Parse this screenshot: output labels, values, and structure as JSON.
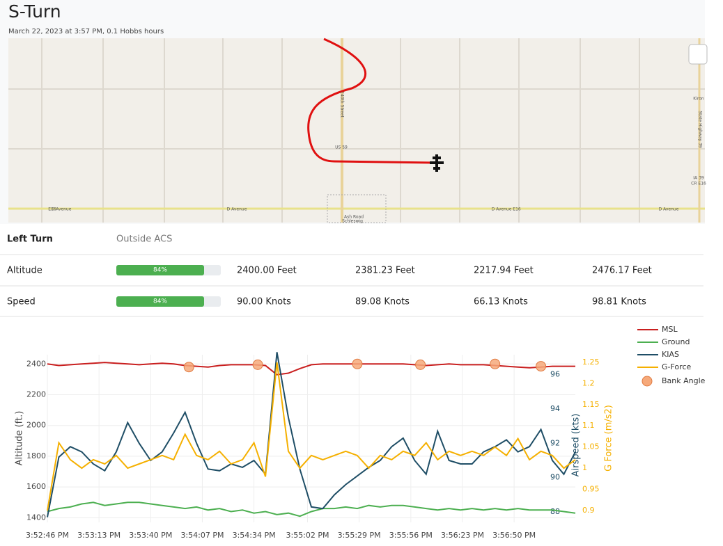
{
  "header": {
    "title": "S-Turn",
    "subtitle": "March 22, 2023 at 3:57 PM, 0.1 Hobbs hours"
  },
  "map": {
    "labels": [
      "E16",
      "D Avenue",
      "D Avenue",
      "D Avenue",
      "E16",
      "D Avenue",
      "US 59",
      "Ash Road",
      "Schleswig",
      "Kiron",
      "IA 39",
      "CR E16",
      "240th Street",
      "State Highway 39"
    ]
  },
  "table": {
    "header": [
      "Left Turn",
      "Outside ACS"
    ],
    "rows": [
      {
        "label": "Altitude",
        "progress": {
          "value": 84,
          "label": "84%"
        },
        "cells": [
          "2400.00 Feet",
          "2381.23 Feet",
          "2217.94 Feet",
          "2476.17 Feet"
        ]
      },
      {
        "label": "Speed",
        "progress": {
          "value": 84,
          "label": "84%"
        },
        "cells": [
          "90.00 Knots",
          "89.08 Knots",
          "66.13 Knots",
          "98.81 Knots"
        ]
      }
    ]
  },
  "chart_data": {
    "type": "line",
    "x": [
      "3:52:46 PM",
      "3:52:52 PM",
      "3:52:58 PM",
      "3:53:04 PM",
      "3:53:10 PM",
      "3:53:16 PM",
      "3:53:22 PM",
      "3:53:28 PM",
      "3:53:34 PM",
      "3:53:40 PM",
      "3:53:46 PM",
      "3:53:52 PM",
      "3:53:58 PM",
      "3:54:04 PM",
      "3:54:10 PM",
      "3:54:16 PM",
      "3:54:22 PM",
      "3:54:28 PM",
      "3:54:34 PM",
      "3:54:40 PM",
      "3:54:46 PM",
      "3:54:52 PM",
      "3:54:58 PM",
      "3:55:04 PM",
      "3:55:10 PM",
      "3:55:16 PM",
      "3:55:22 PM",
      "3:55:28 PM",
      "3:55:34 PM",
      "3:55:40 PM",
      "3:55:46 PM",
      "3:55:52 PM",
      "3:55:58 PM",
      "3:56:04 PM",
      "3:56:10 PM",
      "3:56:16 PM",
      "3:56:22 PM",
      "3:56:28 PM",
      "3:56:34 PM",
      "3:56:40 PM",
      "3:56:46 PM",
      "3:56:52 PM",
      "3:56:58 PM",
      "3:57:04 PM",
      "3:57:10 PM",
      "3:57:16 PM",
      "3:57:22 PM"
    ],
    "xlim": [
      "3:52:46 PM",
      "3:57:22 PM"
    ],
    "xticks": [
      "3:52:46 PM",
      "3:53:13 PM",
      "3:53:40 PM",
      "3:54:07 PM",
      "3:54:34 PM",
      "3:55:02 PM",
      "3:55:29 PM",
      "3:55:56 PM",
      "3:56:23 PM",
      "3:56:50 PM"
    ],
    "ylabel": "Altitude (ft.)",
    "ylim": [
      1370,
      2460
    ],
    "yticks": [
      1400,
      1600,
      1800,
      2000,
      2200,
      2400
    ],
    "y2label": "Airspeed (kts)",
    "y2lim": [
      87.4,
      97.15
    ],
    "y2ticks": [
      88,
      90,
      92,
      94,
      96
    ],
    "y3label": "G Force (m/s2)",
    "y3lim": [
      0.872,
      1.268
    ],
    "y3ticks": [
      0.9,
      0.95,
      1,
      1.05,
      1.1,
      1.15,
      1.2,
      1.25
    ],
    "grid": true,
    "series": [
      {
        "name": "MSL",
        "color": "#c91f1f",
        "values": [
          2400,
          2390,
          2395,
          2400,
          2405,
          2410,
          2405,
          2400,
          2395,
          2400,
          2405,
          2400,
          2390,
          2385,
          2380,
          2390,
          2395,
          2395,
          2395,
          2390,
          2330,
          2340,
          2370,
          2395,
          2400,
          2400,
          2400,
          2400,
          2400,
          2400,
          2400,
          2400,
          2395,
          2390,
          2395,
          2400,
          2395,
          2395,
          2395,
          2390,
          2385,
          2380,
          2375,
          2380,
          2385,
          2385,
          2385
        ]
      },
      {
        "name": "Ground",
        "color": "#4caf50",
        "values": [
          1440,
          1460,
          1470,
          1490,
          1500,
          1480,
          1490,
          1500,
          1500,
          1490,
          1480,
          1470,
          1460,
          1470,
          1450,
          1460,
          1440,
          1450,
          1430,
          1440,
          1420,
          1430,
          1410,
          1440,
          1460,
          1460,
          1470,
          1460,
          1480,
          1470,
          1480,
          1480,
          1470,
          1460,
          1450,
          1460,
          1450,
          1460,
          1450,
          1460,
          1450,
          1460,
          1450,
          1450,
          1450,
          1440,
          1430
        ]
      },
      {
        "name": "KIAS",
        "color": "#1f4e66",
        "axis": "y2",
        "values": [
          87.7,
          91.2,
          91.8,
          91.5,
          90.8,
          90.4,
          91.5,
          93.2,
          92,
          91,
          91.5,
          92.6,
          93.8,
          92,
          90.5,
          90.4,
          90.8,
          90.6,
          91,
          90.2,
          97.3,
          93.5,
          90.5,
          88.3,
          88.2,
          89,
          89.6,
          90.1,
          90.6,
          91,
          91.8,
          92.3,
          91,
          90.2,
          92.7,
          91,
          90.8,
          90.8,
          91.5,
          91.8,
          92.2,
          91.5,
          91.8,
          92.8,
          91,
          90.2,
          91.5
        ]
      },
      {
        "name": "G-Force",
        "color": "#f5b000",
        "axis": "y3",
        "values": [
          0.9,
          1.06,
          1.02,
          1,
          1.02,
          1.01,
          1.03,
          1,
          1.01,
          1.02,
          1.03,
          1.02,
          1.08,
          1.03,
          1.02,
          1.04,
          1.01,
          1.02,
          1.06,
          0.98,
          1.25,
          1.04,
          1,
          1.03,
          1.02,
          1.03,
          1.04,
          1.03,
          1,
          1.03,
          1.02,
          1.04,
          1.03,
          1.06,
          1.02,
          1.04,
          1.03,
          1.04,
          1.03,
          1.05,
          1.03,
          1.07,
          1.02,
          1.04,
          1.03,
          1,
          1.02
        ]
      },
      {
        "name": "Bank Angle",
        "color": "#f6a97a",
        "marker": "circle",
        "x": [
          "3:54:00 PM",
          "3:54:36 PM",
          "3:55:28 PM",
          "3:56:01 PM",
          "3:56:40 PM",
          "3:57:04 PM"
        ],
        "values": [
          2380,
          2395,
          2400,
          2395,
          2400,
          2385
        ]
      }
    ]
  }
}
